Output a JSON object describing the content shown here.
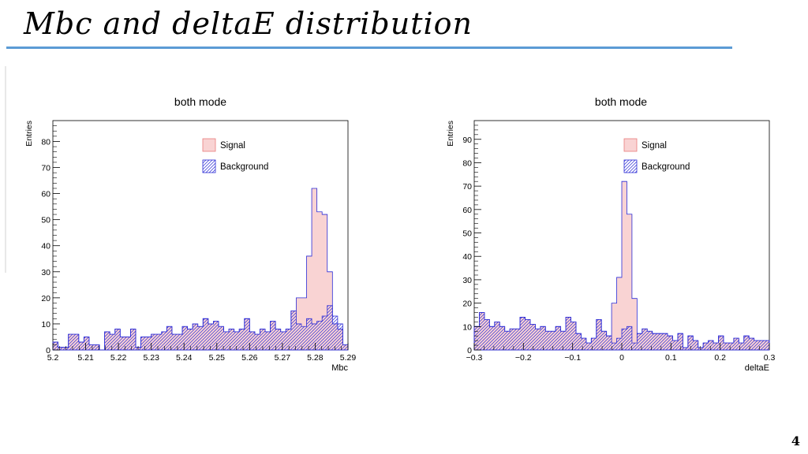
{
  "slide": {
    "title": "Mbc and deltaE distribution",
    "page_number": "4"
  },
  "colors": {
    "signal_fill": "#f9d3d3",
    "signal_line": "#e87c7c",
    "background_line": "#2b2bd6",
    "title_rule": "#5b9bd5"
  },
  "chart_data": [
    {
      "type": "histogram",
      "title": "both mode",
      "xlabel": "Mbc",
      "ylabel": "Entries",
      "xlim": [
        5.2,
        5.29
      ],
      "ylim": [
        0,
        88
      ],
      "x_ticks": [
        "5.2",
        "5.21",
        "5.22",
        "5.23",
        "5.24",
        "5.25",
        "5.26",
        "5.27",
        "5.28",
        "5.29"
      ],
      "y_ticks": [
        "0",
        "10",
        "20",
        "30",
        "40",
        "50",
        "60",
        "70",
        "80"
      ],
      "legend": {
        "position": "top-center",
        "entries": [
          "Signal",
          "Background"
        ]
      },
      "series": [
        {
          "name": "Signal",
          "style": "pink-fill",
          "values": [
            3,
            1,
            1,
            6,
            6,
            3,
            5,
            2,
            2,
            0,
            7,
            6,
            8,
            5,
            5,
            8,
            1,
            5,
            5,
            6,
            6,
            7,
            9,
            6,
            6,
            9,
            8,
            10,
            9,
            12,
            10,
            11,
            9,
            7,
            8,
            7,
            8,
            12,
            7,
            6,
            8,
            7,
            11,
            8,
            7,
            8,
            15,
            20,
            20,
            36,
            62,
            53,
            52,
            30,
            10,
            8,
            2
          ]
        },
        {
          "name": "Background",
          "style": "blue-hatch",
          "values": [
            3,
            1,
            1,
            6,
            6,
            3,
            5,
            2,
            2,
            0,
            7,
            6,
            8,
            5,
            5,
            8,
            1,
            5,
            5,
            6,
            6,
            7,
            9,
            6,
            6,
            9,
            8,
            10,
            9,
            12,
            10,
            11,
            9,
            7,
            8,
            7,
            8,
            12,
            7,
            6,
            8,
            7,
            11,
            8,
            7,
            8,
            15,
            10,
            9,
            12,
            10,
            11,
            13,
            17,
            13,
            10,
            2
          ]
        }
      ]
    },
    {
      "type": "histogram",
      "title": "both mode",
      "xlabel": "deltaE",
      "ylabel": "Entries",
      "xlim": [
        -0.3,
        0.3
      ],
      "ylim": [
        0,
        98
      ],
      "x_ticks": [
        "−0.3",
        "−0.2",
        "−0.1",
        "0",
        "0.1",
        "0.2",
        "0.3"
      ],
      "y_ticks": [
        "0",
        "10",
        "20",
        "30",
        "40",
        "50",
        "60",
        "70",
        "80",
        "90"
      ],
      "legend": {
        "position": "top-center",
        "entries": [
          "Signal",
          "Background"
        ]
      },
      "series": [
        {
          "name": "Signal",
          "style": "pink-fill",
          "values": [
            10,
            16,
            13,
            10,
            12,
            10,
            8,
            9,
            9,
            14,
            13,
            11,
            9,
            10,
            8,
            8,
            10,
            8,
            14,
            12,
            7,
            5,
            3,
            5,
            13,
            8,
            6,
            20,
            31,
            72,
            58,
            22,
            7,
            9,
            8,
            7,
            7,
            7,
            6,
            4,
            7,
            1,
            6,
            4,
            1,
            3,
            4,
            3,
            6,
            3,
            3,
            5,
            3,
            6,
            5,
            4,
            4,
            4
          ]
        },
        {
          "name": "Background",
          "style": "blue-hatch",
          "values": [
            10,
            16,
            13,
            10,
            12,
            10,
            8,
            9,
            9,
            14,
            13,
            11,
            9,
            10,
            8,
            8,
            10,
            8,
            14,
            12,
            7,
            5,
            3,
            5,
            13,
            8,
            6,
            3,
            5,
            9,
            10,
            3,
            7,
            9,
            8,
            7,
            7,
            7,
            6,
            4,
            7,
            1,
            6,
            4,
            1,
            3,
            4,
            3,
            6,
            3,
            3,
            5,
            3,
            6,
            5,
            4,
            4,
            4
          ]
        }
      ]
    }
  ]
}
